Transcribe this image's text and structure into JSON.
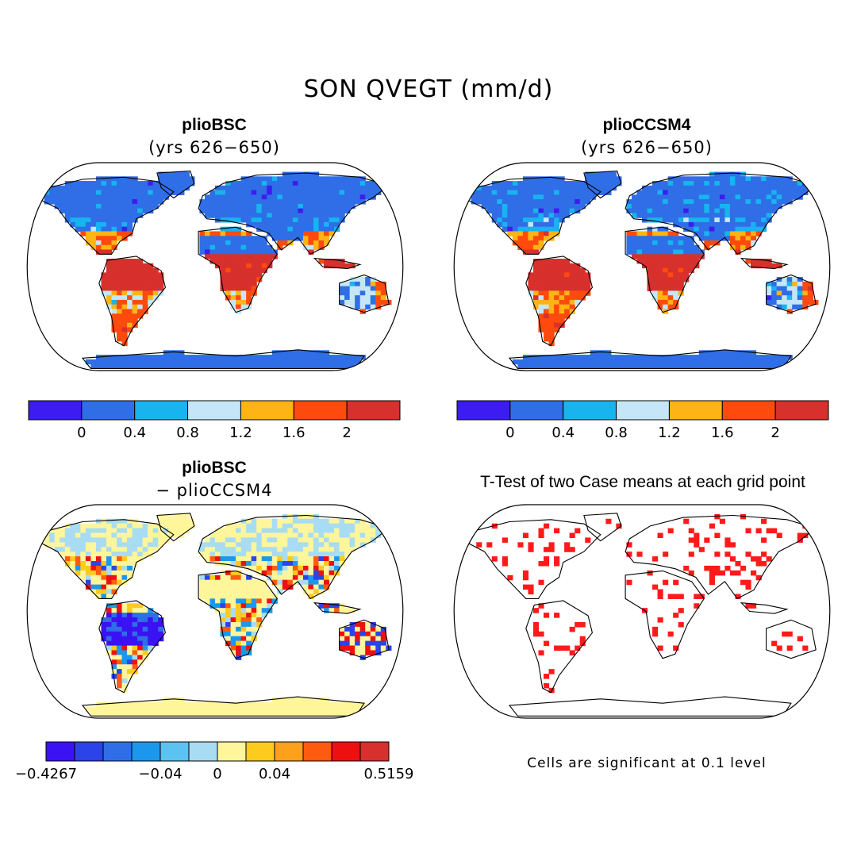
{
  "title": "SON QVEGT (mm/d)",
  "panels": [
    {
      "title": "plioBSC",
      "subtitle": "(yrs 626−650)"
    },
    {
      "title": "plioCCSM4",
      "subtitle": "(yrs 626−650)"
    },
    {
      "title": "plioBSC",
      "subtitle": "− plioCCSM4"
    },
    {
      "title": "T-Test of two Case means at each grid point",
      "subtitle": ""
    }
  ],
  "colorbar_abs": {
    "colors": [
      "#3c1cf0",
      "#2f6ee6",
      "#17b4ef",
      "#c4e6f6",
      "#fdb414",
      "#ff4a0e",
      "#d7302d"
    ],
    "tick_labels": [
      "0",
      "0.4",
      "0.8",
      "1.2",
      "1.6",
      "2"
    ]
  },
  "colorbar_diff": {
    "colors": [
      "#3b12f3",
      "#2b43e8",
      "#2f6ee6",
      "#1b98ee",
      "#5cc2f2",
      "#a8dcf2",
      "#fff59b",
      "#fdcb1e",
      "#fda11a",
      "#ff5b10",
      "#ee1010",
      "#d7302d"
    ],
    "tick_labels": [
      "−0.4267",
      "−0.04",
      "0",
      "0.04",
      "0.5159"
    ]
  },
  "significance": {
    "note": "Cells are significant at 0.1 level",
    "color": "#ff1a1a"
  }
}
